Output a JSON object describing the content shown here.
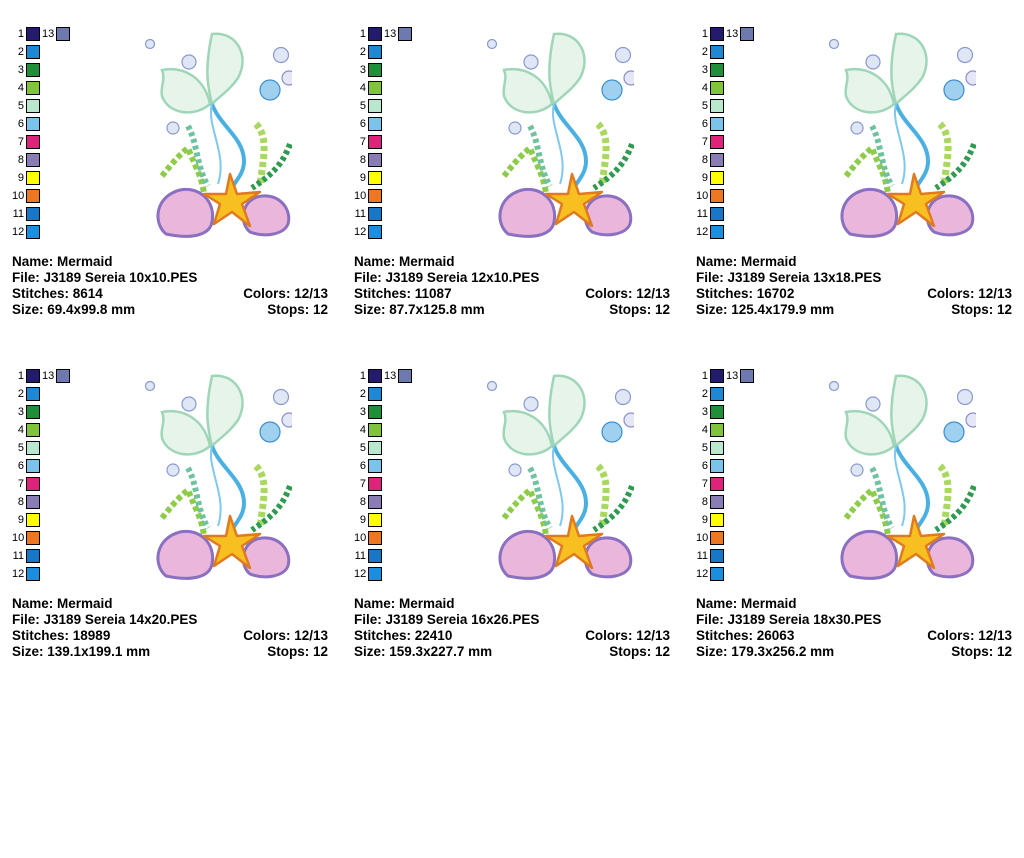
{
  "palette": {
    "numbers": [
      "1",
      "2",
      "3",
      "4",
      "5",
      "6",
      "7",
      "8",
      "9",
      "10",
      "11",
      "12"
    ],
    "extra_number": "13",
    "colors": [
      "#241a6e",
      "#1e88d4",
      "#1f8f3a",
      "#7fc43a",
      "#b9e8cf",
      "#7cc3ec",
      "#e0237a",
      "#8a7cb5",
      "#ffff00",
      "#ee7722",
      "#1878c8",
      "#1a8fe0"
    ],
    "extra_color": "#6e79b0"
  },
  "labels": {
    "name": "Name:",
    "file": "File:",
    "stitches": "Stitches:",
    "size": "Size:",
    "colors": "Colors:",
    "stops": "Stops:"
  },
  "designs": [
    {
      "name": "Mermaid",
      "file": "J3189 Sereia 10x10.PES",
      "stitches": "8614",
      "size": "69.4x99.8 mm",
      "colors": "12/13",
      "stops": "12"
    },
    {
      "name": "Mermaid",
      "file": "J3189 Sereia 12x10.PES",
      "stitches": "11087",
      "size": "87.7x125.8 mm",
      "colors": "12/13",
      "stops": "12"
    },
    {
      "name": "Mermaid",
      "file": "J3189 Sereia 13x18.PES",
      "stitches": "16702",
      "size": "125.4x179.9 mm",
      "colors": "12/13",
      "stops": "12"
    },
    {
      "name": "Mermaid",
      "file": "J3189 Sereia 14x20.PES",
      "stitches": "18989",
      "size": "139.1x199.1 mm",
      "colors": "12/13",
      "stops": "12"
    },
    {
      "name": "Mermaid",
      "file": "J3189 Sereia 16x26.PES",
      "stitches": "22410",
      "size": "159.3x227.7 mm",
      "colors": "12/13",
      "stops": "12"
    },
    {
      "name": "Mermaid",
      "file": "J3189 Sereia 18x30.PES",
      "stitches": "26063",
      "size": "179.3x256.2 mm",
      "colors": "12/13",
      "stops": "12"
    }
  ]
}
